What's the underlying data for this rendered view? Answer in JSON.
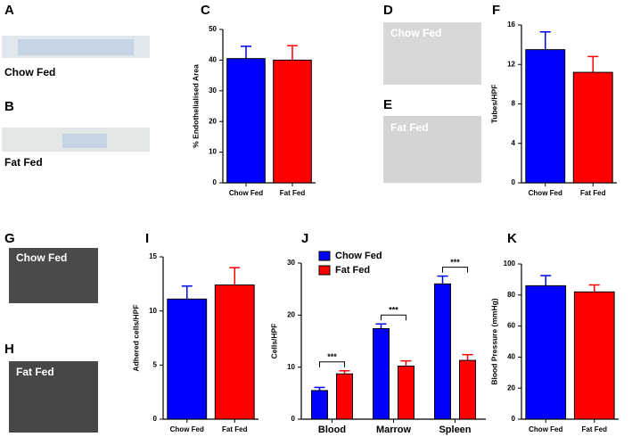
{
  "images": [
    {
      "panel": "A",
      "caption": "Chow Fed"
    },
    {
      "panel": "B",
      "caption": "Fat Fed"
    },
    {
      "panel": "D",
      "caption": "Chow Fed"
    },
    {
      "panel": "E",
      "caption": "Fat Fed"
    },
    {
      "panel": "G",
      "caption": "Chow Fed"
    },
    {
      "panel": "H",
      "caption": "Fat Fed"
    }
  ],
  "chart_data": [
    {
      "type": "bar",
      "panel": "C",
      "ylabel": "% Endothelialised Area",
      "categories": [
        "Chow Fed",
        "Fat Fed"
      ],
      "values": [
        40.5,
        40
      ],
      "errors": [
        4,
        4.7
      ],
      "colors": [
        "#0000ff",
        "#ff0000"
      ],
      "ylim": [
        0,
        50
      ],
      "yticks": [
        0,
        10,
        20,
        30,
        40,
        50
      ]
    },
    {
      "type": "bar",
      "panel": "F",
      "ylabel": "Tubes/HPF",
      "categories": [
        "Chow Fed",
        "Fat Fed"
      ],
      "values": [
        13.5,
        11.2
      ],
      "errors": [
        1.8,
        1.6
      ],
      "colors": [
        "#0000ff",
        "#ff0000"
      ],
      "ylim": [
        0,
        16
      ],
      "yticks": [
        0,
        4,
        8,
        12,
        16
      ]
    },
    {
      "type": "bar",
      "panel": "I",
      "ylabel": "Adhered cells/HPF",
      "categories": [
        "Chow Fed",
        "Fat Fed"
      ],
      "values": [
        11.1,
        12.4
      ],
      "errors": [
        1.2,
        1.6
      ],
      "colors": [
        "#0000ff",
        "#ff0000"
      ],
      "ylim": [
        0,
        15
      ],
      "yticks": [
        0,
        5,
        10,
        15
      ]
    },
    {
      "type": "grouped_bar",
      "panel": "J",
      "ylabel": "Cells/HPF",
      "categories": [
        "Blood",
        "Marrow",
        "Spleen"
      ],
      "series": [
        {
          "name": "Chow Fed",
          "color": "#0000ff",
          "values": [
            5.5,
            17.4,
            26
          ],
          "errors": [
            0.6,
            0.9,
            1.5
          ]
        },
        {
          "name": "Fat Fed",
          "color": "#ff0000",
          "values": [
            8.7,
            10.2,
            11.3
          ],
          "errors": [
            0.6,
            1,
            1.1
          ]
        }
      ],
      "annotations": [
        "***",
        "***",
        "***"
      ],
      "legend": "upper left",
      "ylim": [
        0,
        30
      ],
      "yticks": [
        0,
        10,
        20,
        30
      ]
    },
    {
      "type": "bar",
      "panel": "K",
      "ylabel": "Blood Pressure (mmHg)",
      "categories": [
        "Chow Fed",
        "Fat Fed"
      ],
      "values": [
        86,
        82
      ],
      "errors": [
        6.5,
        4.5
      ],
      "colors": [
        "#0000ff",
        "#ff0000"
      ],
      "ylim": [
        0,
        100
      ],
      "yticks": [
        0,
        20,
        40,
        60,
        80,
        100
      ]
    }
  ]
}
